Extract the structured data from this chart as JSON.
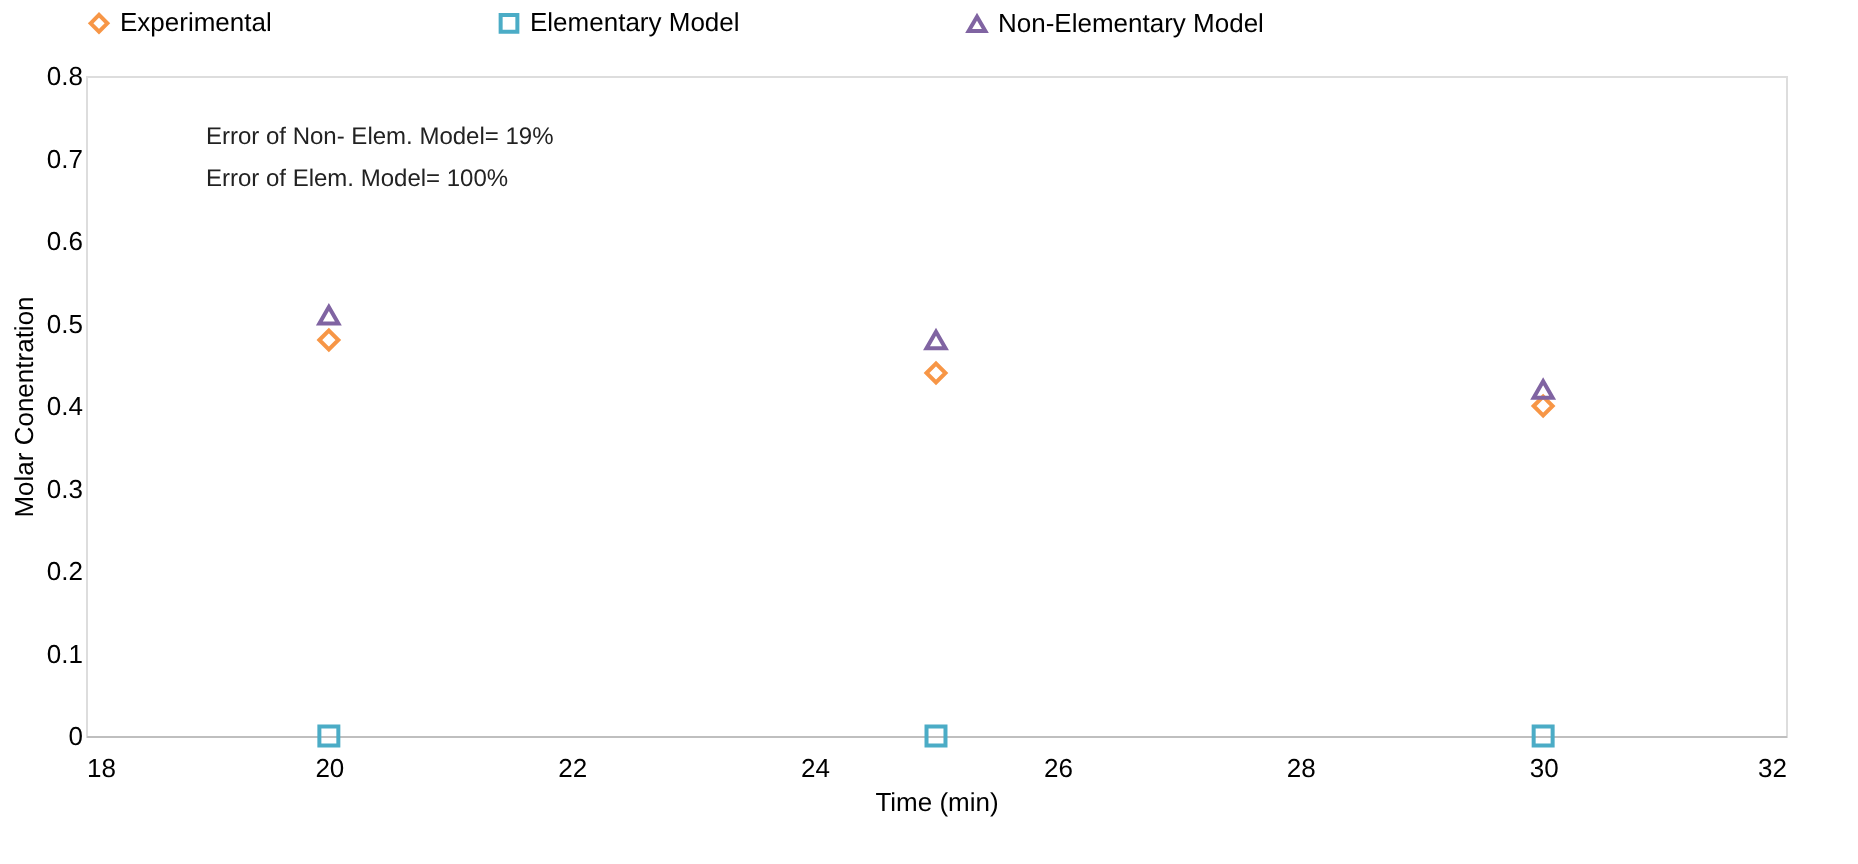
{
  "chart_data": {
    "type": "scatter",
    "xlabel": "Time (min)",
    "ylabel": "Molar Conentration",
    "x": [
      20,
      25,
      30
    ],
    "series": [
      {
        "name": "Experimental",
        "color": "#f79646",
        "marker": "diamond",
        "values": [
          0.48,
          0.44,
          0.4
        ]
      },
      {
        "name": "Elementary Model",
        "color": "#4bacc6",
        "marker": "square",
        "values": [
          0,
          0,
          0
        ]
      },
      {
        "name": "Non-Elementary Model",
        "color": "#8064a2",
        "marker": "triangle",
        "values": [
          0.51,
          0.48,
          0.42
        ]
      }
    ],
    "xlim": [
      18,
      32
    ],
    "xticks": [
      18,
      20,
      22,
      24,
      26,
      28,
      30,
      32
    ],
    "ylim": [
      0,
      0.8
    ],
    "yticks": [
      0,
      0.1,
      0.2,
      0.3,
      0.4,
      0.5,
      0.6,
      0.7,
      0.8
    ],
    "annotations": [
      "Error of Non- Elem. Model= 19%",
      "Error of Elem. Model= 100%"
    ],
    "grid": false,
    "legend": "top"
  }
}
